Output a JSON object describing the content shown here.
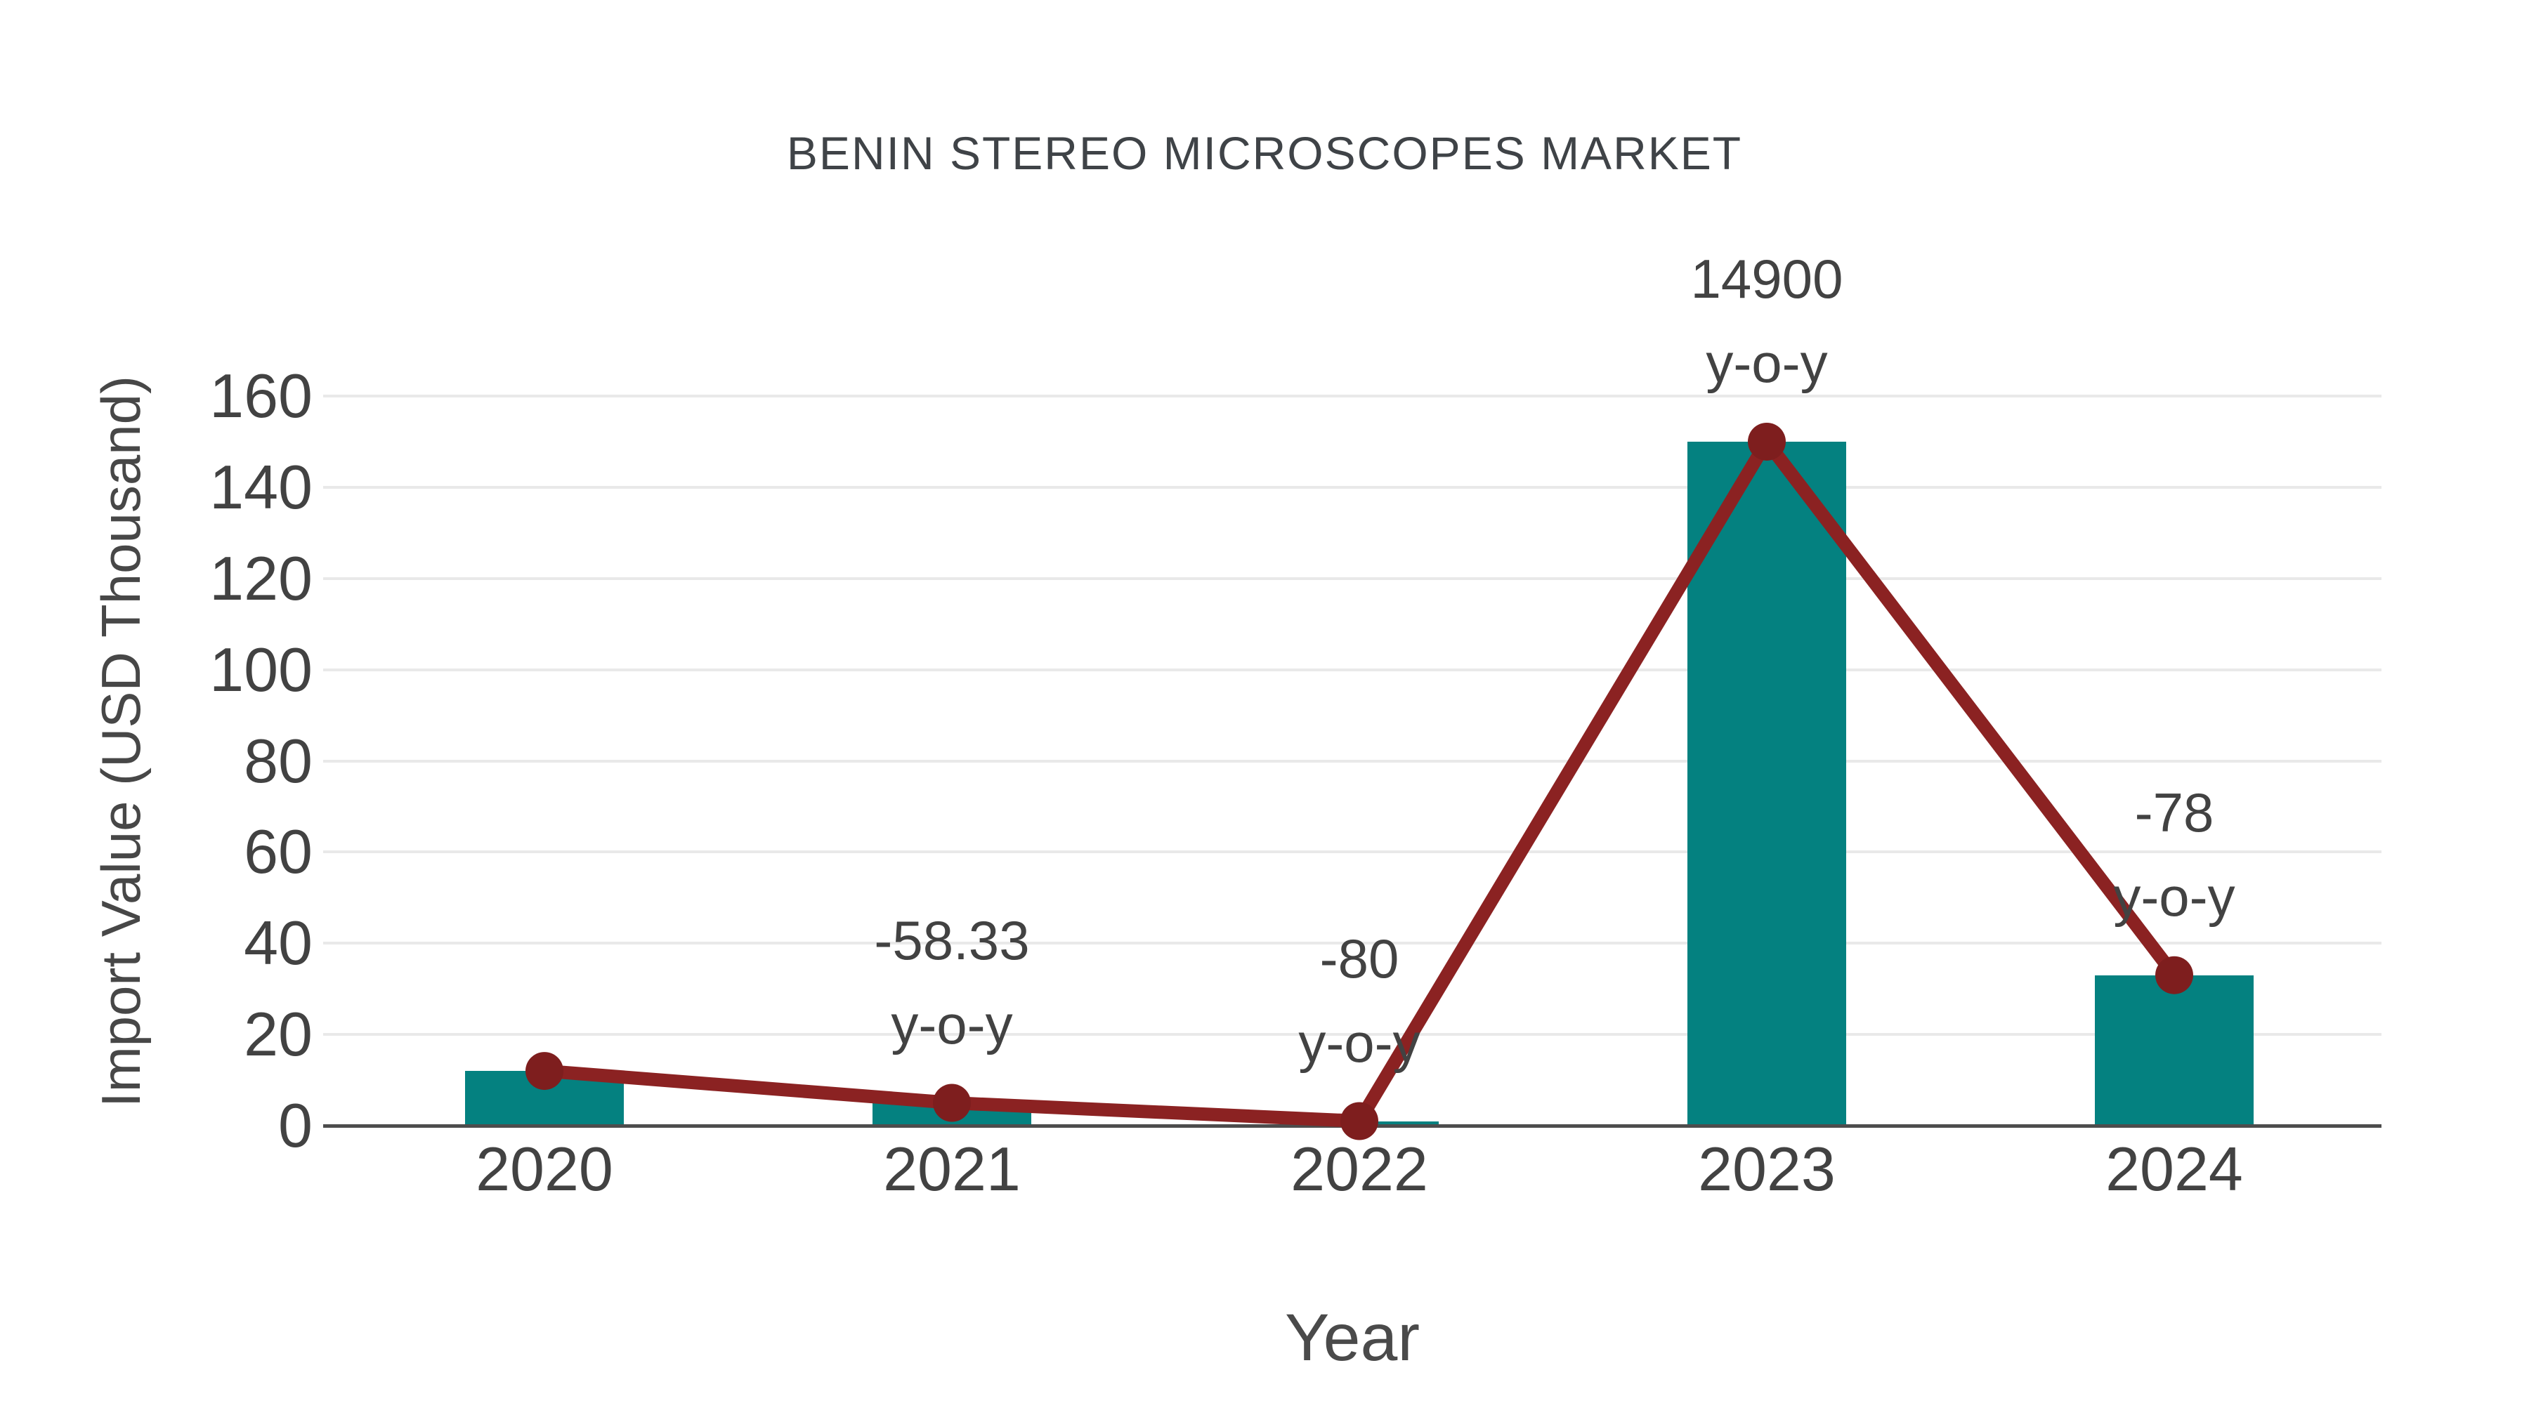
{
  "title": "BENIN STEREO MICROSCOPES MARKET",
  "chart_data": {
    "type": "bar",
    "categories": [
      "2020",
      "2021",
      "2022",
      "2023",
      "2024"
    ],
    "series": [
      {
        "name": "import-value-bars",
        "type": "bar",
        "values": [
          12,
          5,
          1,
          150,
          33
        ],
        "color": "#048180"
      },
      {
        "name": "import-value-trend",
        "type": "line",
        "values": [
          12,
          5,
          1,
          150,
          33
        ],
        "color": "#8b2222",
        "marker_color": "#7e1e1e"
      }
    ],
    "annotations": [
      {
        "category": "2021",
        "line1": "-58.33",
        "line2": "y-o-y"
      },
      {
        "category": "2022",
        "line1": "-80",
        "line2": "y-o-y"
      },
      {
        "category": "2023",
        "line1": "14900",
        "line2": "y-o-y"
      },
      {
        "category": "2024",
        "line1": "-78",
        "line2": "y-o-y"
      }
    ],
    "title": "BENIN STEREO MICROSCOPES MARKET",
    "xlabel": "Year",
    "ylabel": "Import Value (USD Thousand)",
    "ylim": [
      0,
      160
    ],
    "yticks": [
      0,
      20,
      40,
      60,
      80,
      100,
      120,
      140,
      160
    ],
    "grid": true,
    "legend": false,
    "colors": {
      "bar": "#048180",
      "line": "#8b2222",
      "marker": "#7e1e1e",
      "gridline": "#e9e9e9",
      "axis_line": "#4d4d4d",
      "tick_text": "#424242",
      "title_text": "#3f4347"
    }
  }
}
